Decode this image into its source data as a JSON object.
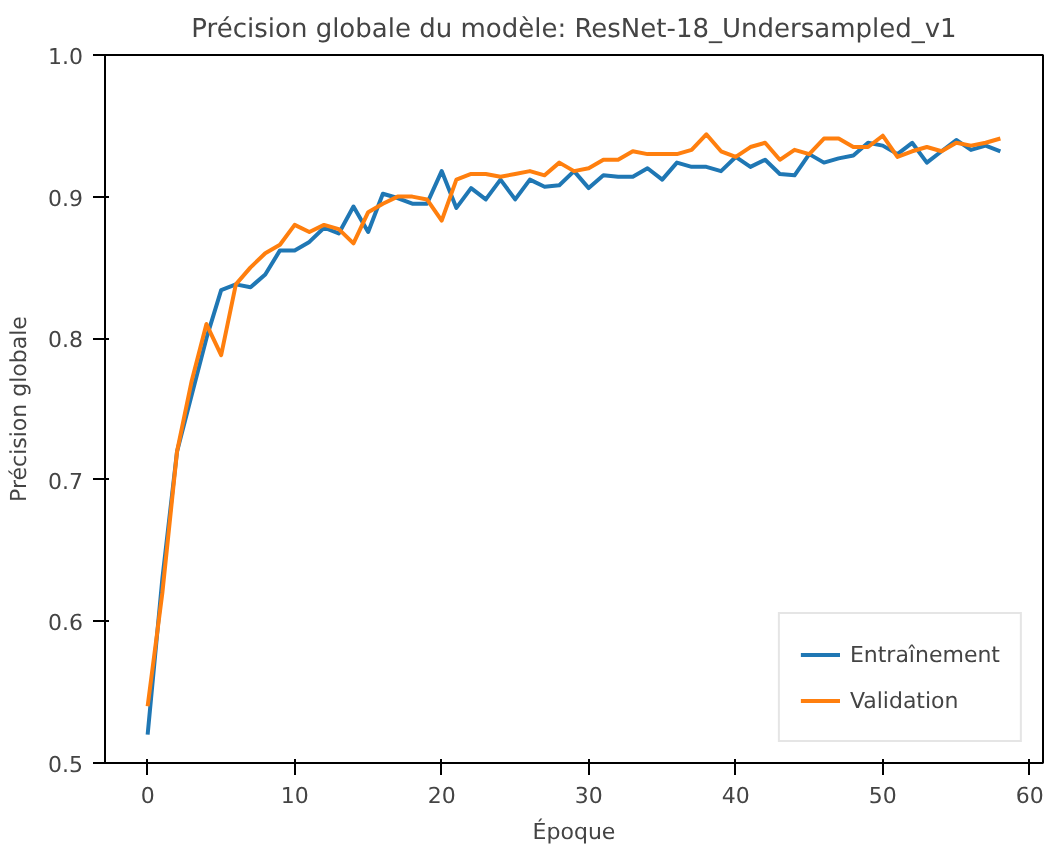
{
  "chart_data": {
    "type": "line",
    "title": "Précision globale du modèle: ResNet-18_Undersampled_v1",
    "xlabel": "Époque",
    "ylabel": "Précision globale",
    "x": [
      0,
      1,
      2,
      3,
      4,
      5,
      6,
      7,
      8,
      9,
      10,
      11,
      12,
      13,
      14,
      15,
      16,
      17,
      18,
      19,
      20,
      21,
      22,
      23,
      24,
      25,
      26,
      27,
      28,
      29,
      30,
      31,
      32,
      33,
      34,
      35,
      36,
      37,
      38,
      39,
      40,
      41,
      42,
      43,
      44,
      45,
      46,
      47,
      48,
      49,
      50,
      51,
      52,
      53,
      54,
      55,
      56,
      57,
      58
    ],
    "series": [
      {
        "name": "Entraînement",
        "color": "#1f77b4",
        "values": [
          0.52,
          0.63,
          0.72,
          0.76,
          0.8,
          0.834,
          0.838,
          0.836,
          0.845,
          0.862,
          0.862,
          0.868,
          0.878,
          0.874,
          0.893,
          0.875,
          0.902,
          0.899,
          0.895,
          0.895,
          0.918,
          0.892,
          0.906,
          0.898,
          0.912,
          0.898,
          0.912,
          0.907,
          0.908,
          0.918,
          0.906,
          0.915,
          0.914,
          0.914,
          0.92,
          0.912,
          0.924,
          0.921,
          0.921,
          0.918,
          0.928,
          0.921,
          0.926,
          0.916,
          0.915,
          0.93,
          0.924,
          0.927,
          0.929,
          0.938,
          0.936,
          0.93,
          0.938,
          0.924,
          0.932,
          0.94,
          0.933,
          0.936,
          0.932
        ]
      },
      {
        "name": "Validation",
        "color": "#ff7f0e",
        "values": [
          0.54,
          0.62,
          0.72,
          0.77,
          0.81,
          0.788,
          0.838,
          0.85,
          0.86,
          0.866,
          0.88,
          0.875,
          0.88,
          0.877,
          0.867,
          0.889,
          0.895,
          0.9,
          0.9,
          0.898,
          0.883,
          0.912,
          0.916,
          0.916,
          0.914,
          0.916,
          0.918,
          0.915,
          0.924,
          0.918,
          0.92,
          0.926,
          0.926,
          0.932,
          0.93,
          0.93,
          0.93,
          0.933,
          0.944,
          0.932,
          0.928,
          0.935,
          0.938,
          0.926,
          0.933,
          0.93,
          0.941,
          0.941,
          0.935,
          0.935,
          0.943,
          0.928,
          0.932,
          0.935,
          0.932,
          0.938,
          0.936,
          0.938,
          0.941
        ]
      }
    ],
    "xlim": [
      -2.9,
      60.9
    ],
    "xticks": [
      0,
      10,
      20,
      30,
      40,
      50,
      60
    ],
    "ylim": [
      0.5,
      1.0
    ],
    "yticks": [
      {
        "value": 0.5,
        "label": "0.5"
      },
      {
        "value": 0.6,
        "label": "0.6"
      },
      {
        "value": 0.7,
        "label": "0.7"
      },
      {
        "value": 0.8,
        "label": "0.8"
      },
      {
        "value": 0.9,
        "label": "0.9"
      },
      {
        "value": 1.0,
        "label": "1.0"
      }
    ],
    "grid": false,
    "legend": "bottom right",
    "marker": "none",
    "line_style": "solid"
  }
}
